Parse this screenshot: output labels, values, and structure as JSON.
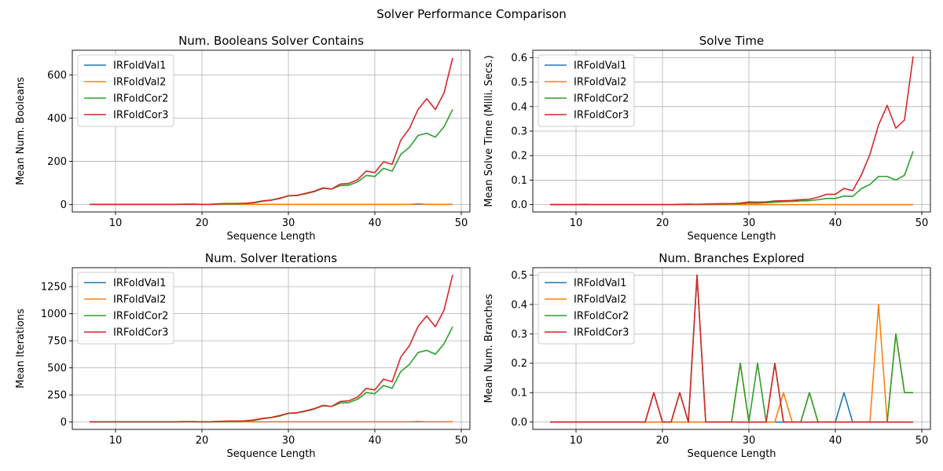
{
  "figure": {
    "suptitle": "Solver Performance Comparison",
    "colors": {
      "IRFoldVal1": "#1f77b4",
      "IRFoldVal2": "#ff7f0e",
      "IRFoldCor2": "#2ca02c",
      "IRFoldCor3": "#d62728"
    }
  },
  "chart_data": [
    {
      "type": "line",
      "title": "Num. Booleans Solver Contains",
      "xlabel": "Sequence Length",
      "ylabel": "Mean Num. Booleans",
      "xlim": [
        5,
        51
      ],
      "ylim": [
        -34,
        714
      ],
      "xticks": [
        10,
        20,
        30,
        40,
        50
      ],
      "yticks": [
        0,
        200,
        400,
        600
      ],
      "grid": true,
      "legend": "upper-left",
      "x": [
        7,
        8,
        9,
        10,
        11,
        12,
        13,
        14,
        15,
        16,
        17,
        18,
        19,
        20,
        21,
        22,
        23,
        24,
        25,
        26,
        27,
        28,
        29,
        30,
        31,
        32,
        33,
        34,
        35,
        36,
        37,
        38,
        39,
        40,
        41,
        42,
        43,
        44,
        45,
        46,
        47,
        48,
        49
      ],
      "series": [
        {
          "name": "IRFoldVal1",
          "color": "#1f77b4",
          "values": [
            1,
            1,
            1,
            1,
            1,
            1,
            1,
            1,
            1,
            1,
            1,
            1,
            1,
            1,
            1,
            1,
            1,
            1,
            1,
            1,
            1,
            1,
            1,
            1,
            1,
            1,
            1,
            1,
            1,
            1,
            1,
            1,
            1,
            1,
            1,
            1,
            1,
            1,
            1,
            1,
            1,
            1,
            1
          ]
        },
        {
          "name": "IRFoldVal2",
          "color": "#ff7f0e",
          "values": [
            1,
            1,
            1,
            1,
            1,
            1,
            1,
            1,
            1,
            1,
            1,
            1,
            2,
            1,
            1,
            1,
            1,
            1,
            1,
            1,
            1,
            1,
            1,
            1,
            1,
            1,
            1,
            1,
            1,
            1,
            1,
            1,
            1,
            1,
            1,
            1,
            1,
            1,
            4,
            1,
            1,
            1,
            1
          ]
        },
        {
          "name": "IRFoldCor2",
          "color": "#2ca02c",
          "values": [
            1,
            1,
            1,
            1,
            1,
            1,
            1,
            1,
            1,
            1,
            1,
            1,
            1,
            1,
            1,
            3,
            4,
            4,
            5,
            8,
            15,
            20,
            28,
            40,
            42,
            50,
            60,
            75,
            72,
            88,
            90,
            105,
            135,
            130,
            168,
            155,
            232,
            265,
            320,
            330,
            312,
            360,
            440
          ]
        },
        {
          "name": "IRFoldCor3",
          "color": "#d62728",
          "values": [
            1,
            1,
            1,
            1,
            1,
            1,
            1,
            1,
            1,
            1,
            1,
            2,
            2,
            1,
            1,
            4,
            5,
            5,
            6,
            10,
            17,
            21,
            30,
            41,
            43,
            52,
            62,
            77,
            72,
            95,
            98,
            115,
            155,
            148,
            198,
            186,
            298,
            352,
            440,
            490,
            440,
            516,
            678
          ]
        }
      ]
    },
    {
      "type": "line",
      "title": "Solve Time",
      "xlabel": "Sequence Length",
      "ylabel": "Mean Solve Time (Milli. Secs.)",
      "xlim": [
        5,
        51
      ],
      "ylim": [
        -0.03,
        0.63
      ],
      "xticks": [
        10,
        20,
        30,
        40,
        50
      ],
      "yticks": [
        0.0,
        0.1,
        0.2,
        0.3,
        0.4,
        0.5,
        0.6
      ],
      "grid": true,
      "legend": "upper-left",
      "x": [
        7,
        8,
        9,
        10,
        11,
        12,
        13,
        14,
        15,
        16,
        17,
        18,
        19,
        20,
        21,
        22,
        23,
        24,
        25,
        26,
        27,
        28,
        29,
        30,
        31,
        32,
        33,
        34,
        35,
        36,
        37,
        38,
        39,
        40,
        41,
        42,
        43,
        44,
        45,
        46,
        47,
        48,
        49
      ],
      "series": [
        {
          "name": "IRFoldVal1",
          "color": "#1f77b4",
          "values": [
            0,
            0,
            0,
            0,
            0,
            0,
            0,
            0,
            0,
            0,
            0,
            0,
            0,
            0,
            0,
            0,
            0,
            0,
            0,
            0,
            0,
            0,
            0,
            0,
            0,
            0,
            0,
            0,
            0,
            0,
            0,
            0,
            0,
            0,
            0,
            0,
            0,
            0,
            0,
            0,
            0,
            0,
            0
          ]
        },
        {
          "name": "IRFoldVal2",
          "color": "#ff7f0e",
          "values": [
            0,
            0,
            0,
            0,
            0,
            0,
            0,
            0,
            0,
            0,
            0,
            0,
            0,
            0,
            0,
            0,
            0,
            0,
            0,
            0,
            0,
            0,
            0,
            0,
            0,
            0,
            0,
            0,
            0,
            0,
            0,
            0,
            0,
            0,
            0,
            0,
            0,
            0,
            0,
            0,
            0,
            0,
            0
          ]
        },
        {
          "name": "IRFoldCor2",
          "color": "#2ca02c",
          "values": [
            0,
            0,
            0,
            0,
            0,
            0,
            0,
            0,
            0,
            0,
            0,
            0,
            0,
            0,
            0,
            0.001,
            0.001,
            0.001,
            0.002,
            0.002,
            0.003,
            0.003,
            0.004,
            0.006,
            0.006,
            0.008,
            0.01,
            0.012,
            0.013,
            0.015,
            0.016,
            0.02,
            0.025,
            0.025,
            0.035,
            0.033,
            0.065,
            0.082,
            0.115,
            0.115,
            0.1,
            0.12,
            0.218
          ]
        },
        {
          "name": "IRFoldCor3",
          "color": "#d62728",
          "values": [
            0,
            0,
            0,
            0,
            0.001,
            0,
            0,
            0,
            0,
            0,
            0,
            0,
            0,
            0,
            0,
            0.001,
            0.002,
            0.001,
            0.002,
            0.003,
            0.004,
            0.004,
            0.006,
            0.011,
            0.01,
            0.011,
            0.015,
            0.016,
            0.017,
            0.02,
            0.022,
            0.03,
            0.042,
            0.042,
            0.066,
            0.057,
            0.12,
            0.205,
            0.325,
            0.405,
            0.312,
            0.345,
            0.605
          ]
        }
      ]
    },
    {
      "type": "line",
      "title": "Num. Solver Iterations",
      "xlabel": "Sequence Length",
      "ylabel": "Mean Iterations",
      "xlim": [
        5,
        51
      ],
      "ylim": [
        -68,
        1425
      ],
      "xticks": [
        10,
        20,
        30,
        40,
        50
      ],
      "yticks": [
        0,
        250,
        500,
        750,
        1000,
        1250
      ],
      "grid": true,
      "legend": "upper-left",
      "x": [
        7,
        8,
        9,
        10,
        11,
        12,
        13,
        14,
        15,
        16,
        17,
        18,
        19,
        20,
        21,
        22,
        23,
        24,
        25,
        26,
        27,
        28,
        29,
        30,
        31,
        32,
        33,
        34,
        35,
        36,
        37,
        38,
        39,
        40,
        41,
        42,
        43,
        44,
        45,
        46,
        47,
        48,
        49
      ],
      "series": [
        {
          "name": "IRFoldVal1",
          "color": "#1f77b4",
          "values": [
            2,
            2,
            2,
            2,
            2,
            2,
            2,
            2,
            2,
            2,
            2,
            2,
            2,
            2,
            2,
            2,
            2,
            2,
            2,
            2,
            2,
            2,
            2,
            2,
            2,
            2,
            2,
            2,
            2,
            2,
            2,
            2,
            2,
            2,
            2,
            2,
            2,
            2,
            2,
            2,
            2,
            2,
            2
          ]
        },
        {
          "name": "IRFoldVal2",
          "color": "#ff7f0e",
          "values": [
            2,
            2,
            2,
            2,
            2,
            2,
            2,
            2,
            2,
            2,
            2,
            2,
            3,
            2,
            2,
            2,
            2,
            2,
            2,
            2,
            2,
            2,
            2,
            2,
            2,
            2,
            2,
            2,
            2,
            2,
            2,
            2,
            2,
            2,
            2,
            2,
            2,
            2,
            6,
            2,
            2,
            2,
            2
          ]
        },
        {
          "name": "IRFoldCor2",
          "color": "#2ca02c",
          "values": [
            2,
            2,
            2,
            2,
            2,
            2,
            2,
            2,
            2,
            2,
            2,
            3,
            3,
            2,
            2,
            5,
            7,
            7,
            9,
            15,
            30,
            40,
            55,
            80,
            84,
            100,
            120,
            150,
            144,
            176,
            180,
            210,
            272,
            262,
            338,
            312,
            466,
            532,
            642,
            662,
            626,
            722,
            880
          ]
        },
        {
          "name": "IRFoldCor3",
          "color": "#d62728",
          "values": [
            2,
            2,
            2,
            2,
            2,
            2,
            2,
            2,
            2,
            2,
            2,
            3,
            3,
            2,
            2,
            6,
            9,
            9,
            11,
            19,
            34,
            42,
            60,
            82,
            86,
            104,
            124,
            154,
            144,
            190,
            196,
            230,
            310,
            296,
            396,
            372,
            600,
            706,
            882,
            980,
            880,
            1032,
            1358
          ]
        }
      ]
    },
    {
      "type": "line",
      "title": "Num. Branches Explored",
      "xlabel": "Sequence Length",
      "ylabel": "Mean Num. Branches",
      "xlim": [
        5,
        51
      ],
      "ylim": [
        -0.025,
        0.525
      ],
      "xticks": [
        10,
        20,
        30,
        40,
        50
      ],
      "yticks": [
        0.0,
        0.1,
        0.2,
        0.3,
        0.4,
        0.5
      ],
      "grid": true,
      "legend": "upper-left",
      "x": [
        7,
        8,
        9,
        10,
        11,
        12,
        13,
        14,
        15,
        16,
        17,
        18,
        19,
        20,
        21,
        22,
        23,
        24,
        25,
        26,
        27,
        28,
        29,
        30,
        31,
        32,
        33,
        34,
        35,
        36,
        37,
        38,
        39,
        40,
        41,
        42,
        43,
        44,
        45,
        46,
        47,
        48,
        49
      ],
      "series": [
        {
          "name": "IRFoldVal1",
          "color": "#1f77b4",
          "values": [
            0,
            0,
            0,
            0,
            0,
            0,
            0,
            0,
            0,
            0,
            0,
            0,
            0,
            0,
            0,
            0,
            0,
            0,
            0,
            0,
            0,
            0,
            0,
            0,
            0,
            0,
            0,
            0,
            0,
            0,
            0,
            0,
            0,
            0,
            0.1,
            0,
            0,
            0,
            0,
            0,
            0,
            0,
            0
          ]
        },
        {
          "name": "IRFoldVal2",
          "color": "#ff7f0e",
          "values": [
            0,
            0,
            0,
            0,
            0,
            0,
            0,
            0,
            0,
            0,
            0,
            0,
            0,
            0,
            0,
            0,
            0,
            0,
            0,
            0,
            0,
            0,
            0.2,
            0,
            0,
            0,
            0,
            0.1,
            0,
            0,
            0.1,
            0,
            0,
            0,
            0,
            0,
            0,
            0,
            0.4,
            0,
            0.3,
            0.1,
            0.1
          ]
        },
        {
          "name": "IRFoldCor2",
          "color": "#2ca02c",
          "values": [
            0,
            0,
            0,
            0,
            0,
            0,
            0,
            0,
            0,
            0,
            0,
            0,
            0.1,
            0,
            0,
            0.1,
            0,
            0.5,
            0,
            0,
            0,
            0,
            0.2,
            0,
            0.2,
            0,
            0.2,
            0,
            0,
            0,
            0.1,
            0,
            0,
            0,
            0,
            0,
            0,
            0,
            0,
            0,
            0.3,
            0.1,
            0.1
          ]
        },
        {
          "name": "IRFoldCor3",
          "color": "#d62728",
          "values": [
            0,
            0,
            0,
            0,
            0,
            0,
            0,
            0,
            0,
            0,
            0,
            0,
            0.1,
            0,
            0,
            0.1,
            0,
            0.5,
            0,
            0,
            0,
            0,
            0,
            0,
            0,
            0,
            0.2,
            0,
            0,
            0,
            0,
            0,
            0,
            0,
            0,
            0,
            0,
            0,
            0,
            0,
            0,
            0,
            0
          ]
        }
      ]
    }
  ]
}
